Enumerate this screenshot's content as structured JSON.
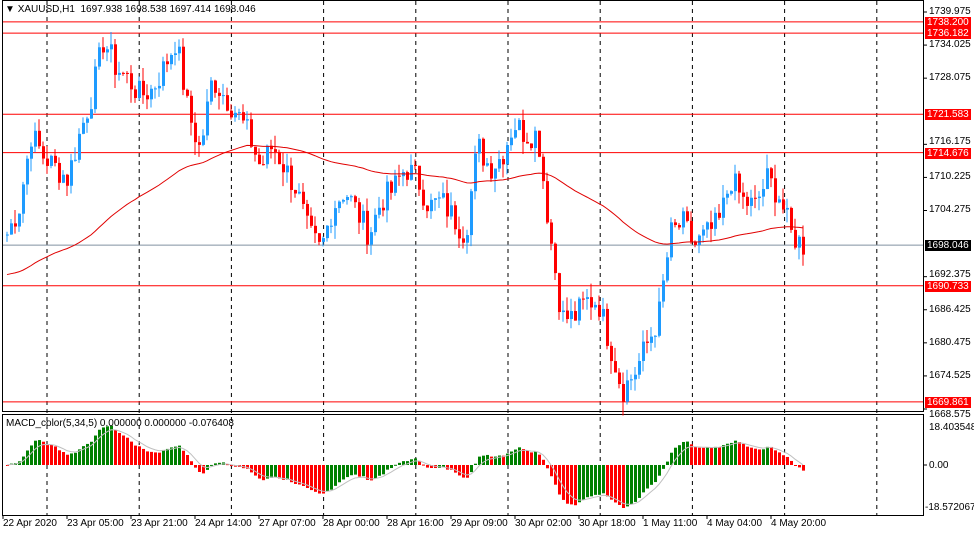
{
  "header": {
    "symbol": "XAUUSD,H1",
    "open": "1697.938",
    "high": "1698.538",
    "low": "1697.414",
    "close": "1698.046"
  },
  "indicator": {
    "label": "MACD_color(5,34,5) 0.000000 0.000000 -0.076408",
    "max": "18.403548",
    "zero": "0.00",
    "min": "-18.572067"
  },
  "price_axis": [
    "1739.975",
    "1734.025",
    "1728.075",
    "1716.175",
    "1710.225",
    "1704.275",
    "1692.375",
    "1686.425",
    "1680.475",
    "1674.525",
    "1668.575"
  ],
  "levels": [
    {
      "value": "1738.200",
      "color": "#ff0000"
    },
    {
      "value": "1736.182",
      "color": "#ff0000"
    },
    {
      "value": "1721.583",
      "color": "#ff0000"
    },
    {
      "value": "1714.676",
      "color": "#ff0000"
    },
    {
      "value": "1690.733",
      "color": "#ff0000"
    },
    {
      "value": "1669.861",
      "color": "#ff0000"
    }
  ],
  "current_price": {
    "value": "1698.046",
    "color": "#000000"
  },
  "time_axis": [
    "22 Apr 2020",
    "23 Apr 05:00",
    "23 Apr 21:00",
    "24 Apr 14:00",
    "27 Apr 07:00",
    "28 Apr 00:00",
    "28 Apr 16:00",
    "29 Apr 09:00",
    "30 Apr 02:00",
    "30 Apr 18:00",
    "1 May 11:00",
    "4 May 04:00",
    "4 May 20:00"
  ],
  "colors": {
    "bull": "#1e9bff",
    "bear": "#ff0000",
    "ma": "#e00000",
    "macd_up": "#008000",
    "macd_down": "#ff0000"
  },
  "chart_data": {
    "type": "candlestick",
    "ylim": [
      1668.575,
      1739.975
    ],
    "closes": [
      1700,
      1705,
      1718,
      1714,
      1712,
      1710,
      1718,
      1725,
      1735,
      1730,
      1728,
      1725,
      1726,
      1730,
      1735,
      1722,
      1715,
      1728,
      1725,
      1722,
      1718,
      1712,
      1716,
      1712,
      1708,
      1700,
      1697,
      1705,
      1708,
      1704,
      1700,
      1706,
      1708,
      1712,
      1710,
      1705,
      1706,
      1703,
      1700,
      1716,
      1712,
      1714,
      1720,
      1718,
      1718,
      1700,
      1685,
      1685,
      1688,
      1688,
      1680,
      1672,
      1675,
      1680,
      1685,
      1700,
      1702,
      1698,
      1700,
      1702,
      1710,
      1706,
      1705,
      1710,
      1707,
      1700,
      1698
    ]
  }
}
